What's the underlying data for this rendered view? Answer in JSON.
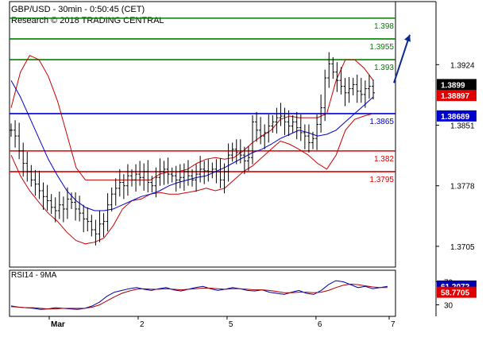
{
  "header": {
    "instrument_line": "GBP/USD - 30min - 0:50:45 (CET)",
    "source_line": "Research © 2018 TRADING CENTRAL"
  },
  "chart_data": [
    {
      "type": "line",
      "panel": "price",
      "y_ticks": [
        "1.3924",
        "1.3851",
        "1.3778",
        "1.3705"
      ],
      "ylim": [
        1.368,
        1.4
      ],
      "x_ticks": [
        {
          "label": "Mar",
          "index": 0
        },
        {
          "label": "2",
          "index": 24
        },
        {
          "label": "5",
          "index": 48
        },
        {
          "label": "6",
          "index": 72
        },
        {
          "label": "7",
          "index": 96
        }
      ],
      "levels": [
        {
          "value": 1.398,
          "label": "1.398",
          "role": "resistance",
          "color": "#008000"
        },
        {
          "value": 1.3955,
          "label": "1.3955",
          "role": "resistance",
          "color": "#008000"
        },
        {
          "value": 1.393,
          "label": "1.393",
          "role": "resistance",
          "color": "#008000"
        },
        {
          "value": 1.3865,
          "label": "1.3865",
          "role": "pivot",
          "color": "#0000cc"
        },
        {
          "value": 1.382,
          "label": "1.382",
          "role": "support",
          "color": "#e00000"
        },
        {
          "value": 1.3795,
          "label": "1.3795",
          "role": "support",
          "color": "#e00000"
        }
      ],
      "price_boxes": [
        {
          "label": "1.3899",
          "bg": "#000000",
          "fg": "#ffffff"
        },
        {
          "label": "1.38897",
          "bg": "#e00000",
          "fg": "#ffffff"
        },
        {
          "label": "1.38689",
          "bg": "#0000cc",
          "fg": "#ffffff"
        }
      ],
      "close": [
        1.3845,
        1.3838,
        1.382,
        1.3805,
        1.3795,
        1.3785,
        1.378,
        1.3772,
        1.3765,
        1.376,
        1.3752,
        1.3748,
        1.3755,
        1.375,
        1.3762,
        1.3758,
        1.375,
        1.3745,
        1.3738,
        1.3735,
        1.3725,
        1.372,
        1.3732,
        1.3735,
        1.3755,
        1.3768,
        1.3775,
        1.3782,
        1.3778,
        1.379,
        1.3785,
        1.3792,
        1.3788,
        1.3795,
        1.3782,
        1.3778,
        1.3788,
        1.3795,
        1.3798,
        1.3792,
        1.379,
        1.3785,
        1.3788,
        1.3795,
        1.379,
        1.3785,
        1.3792,
        1.3798,
        1.3796,
        1.3795,
        1.3798,
        1.3795,
        1.3785,
        1.3795,
        1.3815,
        1.3822,
        1.3818,
        1.3815,
        1.3808,
        1.3812,
        1.3855,
        1.3845,
        1.3838,
        1.3842,
        1.385,
        1.3855,
        1.386,
        1.3862,
        1.3855,
        1.385,
        1.3855,
        1.3848,
        1.3842,
        1.3838,
        1.383,
        1.3835,
        1.3852,
        1.3872,
        1.3908,
        1.3925,
        1.3915,
        1.3905,
        1.3898,
        1.389,
        1.3895,
        1.39,
        1.3892,
        1.3888,
        1.3895,
        1.3898,
        1.389
      ],
      "bands": {
        "upper": [
          1.3872,
          1.3915,
          1.3935,
          1.393,
          1.391,
          1.388,
          1.384,
          1.38,
          1.3785,
          1.3785,
          1.3785,
          1.3785,
          1.3785,
          1.3785,
          1.3785,
          1.3785,
          1.3792,
          1.3795,
          1.3795,
          1.3798,
          1.3805,
          1.381,
          1.3812,
          1.381,
          1.3812,
          1.382,
          1.383,
          1.3838,
          1.3845,
          1.3858,
          1.3862,
          1.386,
          1.386,
          1.386,
          1.3865,
          1.3905,
          1.393,
          1.393,
          1.392,
          1.3905
        ],
        "lower": [
          1.3815,
          1.379,
          1.3772,
          1.3758,
          1.3745,
          1.3735,
          1.3722,
          1.3712,
          1.3708,
          1.371,
          1.3715,
          1.373,
          1.375,
          1.376,
          1.3762,
          1.3768,
          1.377,
          1.3768,
          1.3768,
          1.377,
          1.3772,
          1.3775,
          1.3772,
          1.3775,
          1.3785,
          1.3795,
          1.3802,
          1.3812,
          1.3822,
          1.3832,
          1.3828,
          1.3822,
          1.3815,
          1.3805,
          1.3798,
          1.3815,
          1.3845,
          1.3858,
          1.3862,
          1.3865
        ],
        "moving_average": [
          1.3905,
          1.3885,
          1.386,
          1.3835,
          1.381,
          1.379,
          1.3772,
          1.376,
          1.3752,
          1.3748,
          1.3748,
          1.375,
          1.3755,
          1.376,
          1.3765,
          1.3768,
          1.3772,
          1.3778,
          1.3782,
          1.3785,
          1.3788,
          1.379,
          1.3795,
          1.38,
          1.3806,
          1.3812,
          1.3818,
          1.3822,
          1.3828,
          1.3835,
          1.384,
          1.3845,
          1.3842,
          1.3838,
          1.384,
          1.3845,
          1.3855,
          1.3865,
          1.3875,
          1.3885
        ]
      },
      "projection": {
        "from": 1.3902,
        "to": 1.396,
        "color": "#0b2a8f"
      }
    },
    {
      "type": "line",
      "panel": "indicator",
      "title": "RSI14 - 9MA",
      "y_ticks": [
        "70",
        "30"
      ],
      "ylim": [
        10,
        90
      ],
      "series": [
        {
          "values": [
            28,
            26,
            25,
            24,
            22,
            23,
            25,
            24,
            23,
            22,
            24,
            28,
            35,
            45,
            52,
            55,
            58,
            60,
            57,
            55,
            58,
            60,
            56,
            54,
            57,
            60,
            62,
            58,
            55,
            57,
            60,
            58,
            55,
            54,
            56,
            52,
            50,
            48,
            52,
            55,
            50,
            48,
            55,
            65,
            72,
            70,
            65,
            60,
            62,
            58,
            60,
            62
          ],
          "color": "#0000aa"
        },
        {
          "values": [
            27,
            26,
            25,
            25,
            24,
            23,
            23,
            24,
            24,
            24,
            24,
            26,
            30,
            37,
            44,
            50,
            54,
            57,
            58,
            57,
            57,
            58,
            57,
            56,
            57,
            58,
            59,
            59,
            58,
            57,
            58,
            58,
            57,
            56,
            56,
            55,
            53,
            51,
            51,
            52,
            52,
            51,
            52,
            55,
            60,
            64,
            66,
            65,
            63,
            61,
            60,
            60
          ],
          "color": "#aa0000"
        }
      ],
      "value_boxes": [
        {
          "label": "61.2072",
          "bg": "#0000aa",
          "fg": "#ffffff"
        },
        {
          "label": "58.7705",
          "bg": "#e00000",
          "fg": "#ffffff"
        }
      ]
    }
  ]
}
